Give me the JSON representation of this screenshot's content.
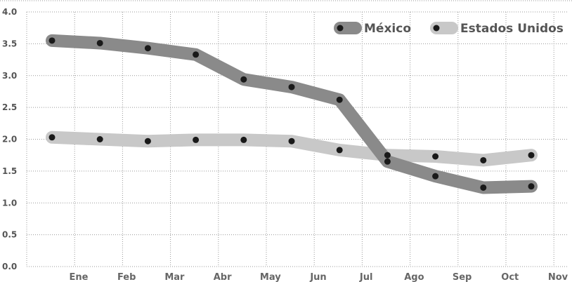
{
  "chart_data": {
    "type": "line",
    "title": "",
    "xlabel": "",
    "ylabel": "",
    "ylim": [
      0,
      4.0
    ],
    "yticks": [
      "0.0",
      "0.5",
      "1.0",
      "1.5",
      "2.0",
      "2.5",
      "3.0",
      "3.5",
      "4.0"
    ],
    "xticks": [
      "Ene",
      "Feb",
      "Mar",
      "Abr",
      "May",
      "Jun",
      "Jul",
      "Ago",
      "Sep",
      "Oct",
      "Nov"
    ],
    "grid": true,
    "legend_position": "top-right",
    "series": [
      {
        "name": "México",
        "color": "#8a8a8a",
        "values": [
          3.55,
          3.51,
          3.43,
          3.33,
          2.94,
          2.82,
          2.62,
          1.65,
          1.42,
          1.24,
          1.26
        ]
      },
      {
        "name": "Estados Unidos",
        "color": "#c8c8c8",
        "values": [
          2.03,
          2.0,
          1.97,
          1.99,
          1.99,
          1.97,
          1.83,
          1.75,
          1.73,
          1.67,
          1.75
        ]
      }
    ],
    "marker_color": "#1a1a1a"
  }
}
